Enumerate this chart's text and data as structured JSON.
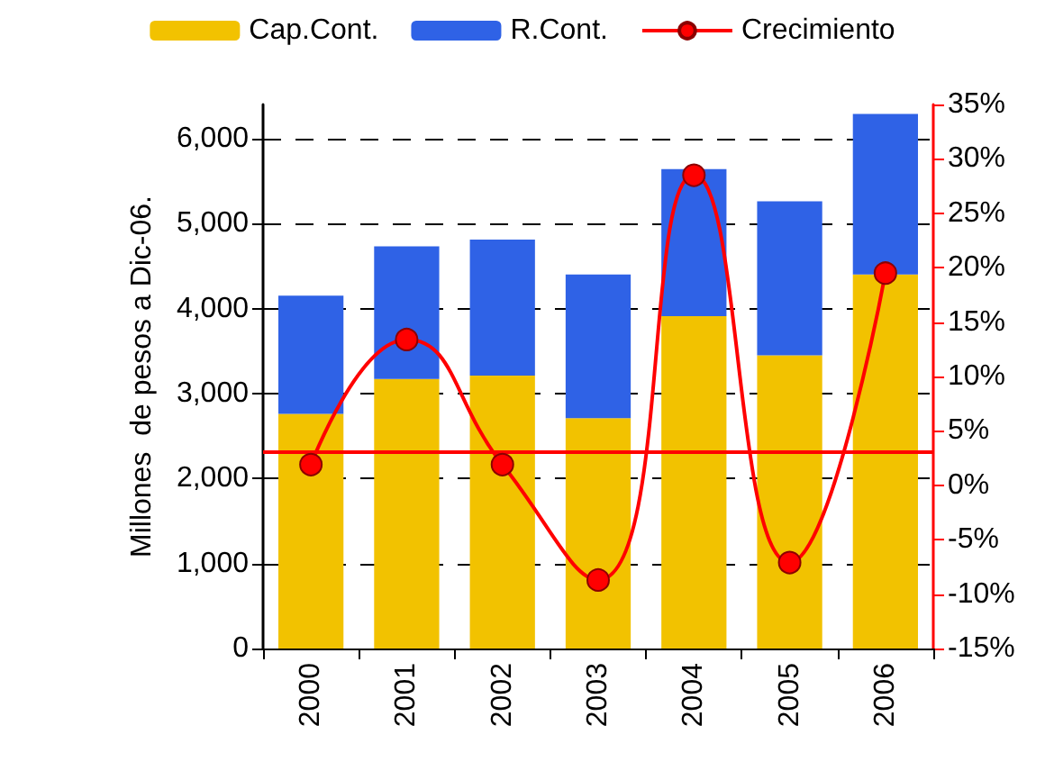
{
  "chart_data": {
    "type": "bar",
    "stacked": true,
    "ylabel": "Millones  de pesos a Dic-06.",
    "categories": [
      "2000",
      "2001",
      "2002",
      "2003",
      "2004",
      "2005",
      "2006"
    ],
    "series": [
      {
        "name": "Cap.Cont.",
        "color": "#f2c200",
        "values": [
          2760,
          3170,
          3210,
          2710,
          3910,
          3450,
          4400
        ]
      },
      {
        "name": "R.Cont.",
        "color": "#2f62e6",
        "values": [
          1390,
          1560,
          1600,
          1690,
          1730,
          1810,
          1890
        ]
      },
      {
        "name": "Crecimiento",
        "type": "line",
        "axis": "y2",
        "color": "#ff0000",
        "marker": "circle",
        "values": [
          1.9,
          13.4,
          1.9,
          -8.7,
          28.5,
          -7.1,
          19.5
        ]
      }
    ],
    "ylim": [
      0,
      6400
    ],
    "yticks": [
      0,
      {
        "value": 1000,
        "label": "1,000"
      },
      {
        "value": 2000,
        "label": "2,000"
      },
      {
        "value": 3000,
        "label": "3,000"
      },
      {
        "value": 4000,
        "label": "4,000"
      },
      {
        "value": 5000,
        "label": "5,000"
      },
      {
        "value": 6000,
        "label": "6,000"
      }
    ],
    "y2lim": [
      -15,
      35
    ],
    "y2ticks": [
      {
        "value": -15,
        "label": "-15%"
      },
      {
        "value": -10,
        "label": "-10%"
      },
      {
        "value": -5,
        "label": "-5%"
      },
      {
        "value": 0,
        "label": "0%"
      },
      {
        "value": 5,
        "label": "5%"
      },
      {
        "value": 10,
        "label": "10%"
      },
      {
        "value": 15,
        "label": "15%"
      },
      {
        "value": 20,
        "label": "20%"
      },
      {
        "value": 25,
        "label": "25%"
      },
      {
        "value": 30,
        "label": "30%"
      },
      {
        "value": 35,
        "label": "35%"
      }
    ],
    "ref_lines": [
      {
        "axis": "y2",
        "value": 3.1,
        "color": "#ff0000"
      }
    ],
    "grid": "y",
    "legend": "top"
  }
}
